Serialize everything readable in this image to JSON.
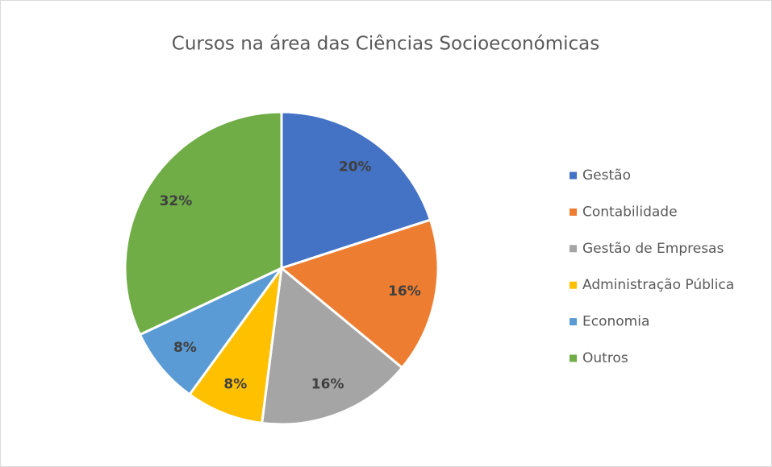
{
  "chart_data": {
    "type": "pie",
    "title": "Cursos na área das Ciências Socioeconómicas",
    "categories": [
      "Gestão",
      "Contabilidade",
      "Gestão de Empresas",
      "Administração Pública",
      "Economia",
      "Outros"
    ],
    "values": [
      20,
      16,
      16,
      8,
      8,
      32
    ],
    "value_labels": [
      "20%",
      "16%",
      "16%",
      "8%",
      "8%",
      "32%"
    ],
    "colors": [
      "#4472c4",
      "#ed7d31",
      "#a5a5a5",
      "#ffc000",
      "#5b9bd5",
      "#70ad47"
    ],
    "legend": "right"
  }
}
